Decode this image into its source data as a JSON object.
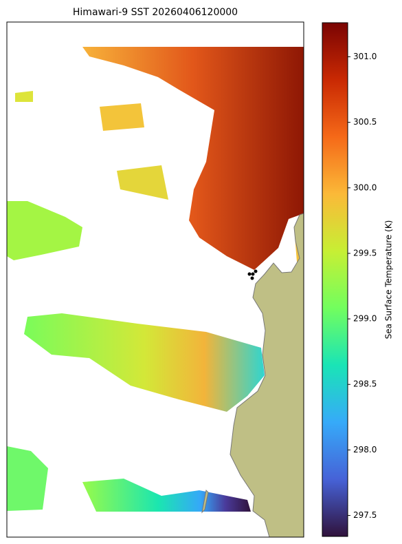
{
  "title": "Himawari-9 SST 20260406120000",
  "colorbar": {
    "label": "Sea Surface Temperature (K)",
    "lim": [
      297.34,
      301.26
    ],
    "ticks": [
      297.5,
      {
        "value": 298,
        "label": "298.0"
      },
      298.5,
      {
        "value": 299,
        "label": "299.0"
      },
      299.5,
      {
        "value": 300,
        "label": "300.0"
      },
      300.5,
      {
        "value": 301,
        "label": "301.0"
      }
    ],
    "colormap": [
      "#30123b",
      "#4662d7",
      "#36aaf9",
      "#1ae4b6",
      "#72fe5e",
      "#c7ef34",
      "#fbb938",
      "#f56918",
      "#c92903",
      "#7a0403"
    ]
  }
}
